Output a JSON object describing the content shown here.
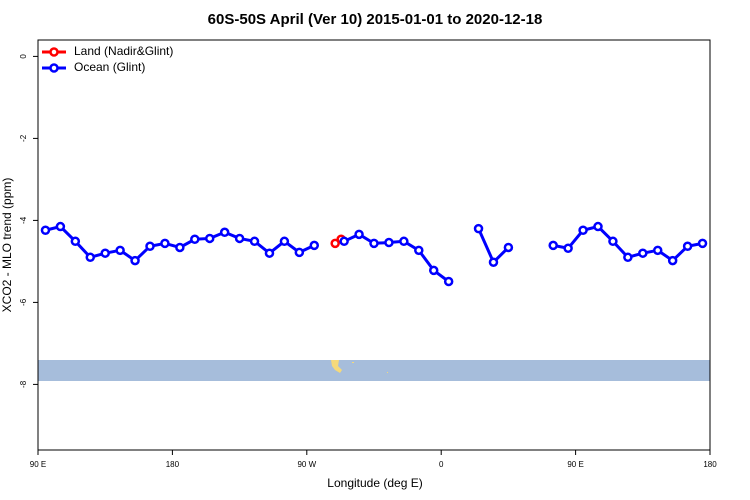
{
  "chart_data": {
    "type": "line",
    "title": "60S-50S April (Ver 10)   2015-01-01 to 2020-12-18",
    "x_label": "Longitude (deg E)",
    "y_label": "XCO2 - MLO trend (ppm)",
    "xlim": [
      90,
      540
    ],
    "ylim": [
      -9.6,
      0.4
    ],
    "xticks": [
      {
        "value": 90,
        "label": "90 E"
      },
      180,
      {
        "value": 270,
        "label": "90 W"
      },
      {
        "value": 360,
        "label": "0"
      },
      {
        "value": 450,
        "label": "90 E"
      },
      {
        "value": 540,
        "label": "180"
      }
    ],
    "yticks": [
      0,
      -2,
      -4,
      -6,
      -8
    ],
    "legend": "topleft",
    "series": [
      {
        "name": "Land (Nadir&Glint)",
        "color": "#ff0000",
        "x": [
          289,
          293
        ],
        "values": [
          -4.56,
          -4.46
        ]
      },
      {
        "name": "Ocean (Glint)",
        "color": "#0000ff",
        "x": [
          95,
          105,
          115,
          125,
          135,
          145,
          155,
          165,
          175,
          185,
          195,
          205,
          215,
          225,
          235,
          245,
          255,
          265,
          275,
          285,
          295,
          305,
          315,
          325,
          335,
          345,
          355,
          365,
          375,
          385,
          395,
          405,
          415,
          425,
          435,
          445,
          455,
          465,
          475,
          485,
          495,
          505,
          515,
          525,
          535
        ],
        "values": [
          -4.24,
          -4.15,
          -4.51,
          -4.9,
          -4.8,
          -4.73,
          -4.98,
          -4.63,
          -4.56,
          -4.66,
          -4.46,
          -4.44,
          -4.29,
          -4.44,
          -4.51,
          -4.8,
          -4.51,
          -4.78,
          -4.61,
          null,
          -4.51,
          -4.34,
          -4.56,
          -4.54,
          -4.51,
          -4.73,
          -5.22,
          -5.49,
          null,
          -4.2,
          -5.02,
          -4.66,
          null,
          null,
          -4.61,
          -4.68,
          -4.24,
          -4.15,
          -4.51,
          -4.9,
          -4.8,
          -4.73,
          -4.98,
          -4.63,
          -4.56
        ]
      }
    ]
  }
}
